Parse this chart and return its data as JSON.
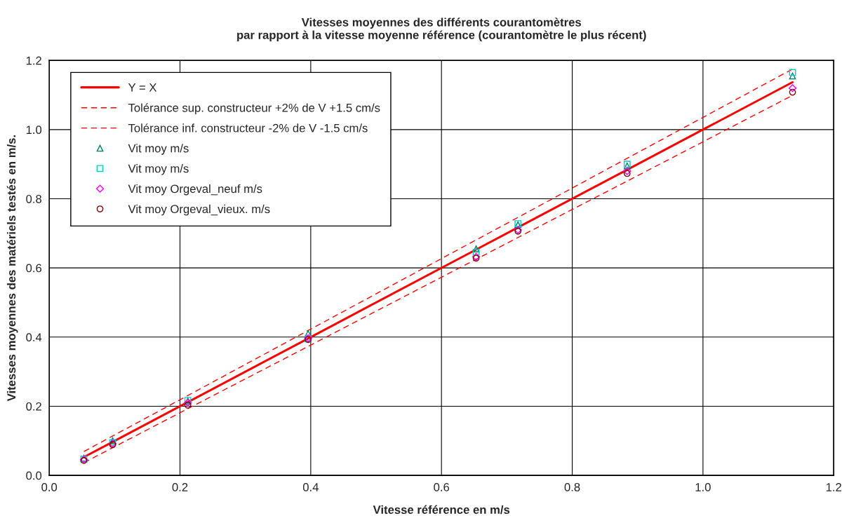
{
  "chart_data": {
    "type": "scatter",
    "title": "Vitesses moyennes des différents courantomètres\npar rapport à la vitesse moyenne référence (courantomètre le plus récent)",
    "xlabel": "Vitesse référence en m/s",
    "ylabel": "Vitesses moyennes des matériels testés en m/s.",
    "x": [
      0.053,
      0.097,
      0.212,
      0.396,
      0.653,
      0.717,
      0.884,
      1.137
    ],
    "series": [
      {
        "name": "Y = X",
        "type": "line",
        "color": "#ff0000",
        "line_style": "solid",
        "marker": "none",
        "values": [
          0.053,
          0.097,
          0.212,
          0.396,
          0.653,
          0.717,
          0.884,
          1.137
        ]
      },
      {
        "name": "Tolérance sup. constructeur +2% de V +1.5 cm/s",
        "type": "line",
        "color": "#ff0000",
        "line_style": "dashed",
        "marker": "none",
        "values": [
          0.069,
          0.114,
          0.231,
          0.419,
          0.681,
          0.746,
          0.917,
          1.175
        ]
      },
      {
        "name": "Tolérance inf. constructeur -2% de V -1.5 cm/s",
        "type": "line",
        "color": "#ff0000",
        "line_style": "dashed",
        "marker": "none",
        "values": [
          0.037,
          0.08,
          0.193,
          0.373,
          0.625,
          0.688,
          0.851,
          1.099
        ]
      },
      {
        "name": "Vit moy m/s",
        "color": "#008060",
        "marker": "triangle",
        "values": [
          0.05,
          0.1,
          0.215,
          0.41,
          0.655,
          0.725,
          0.895,
          1.155
        ]
      },
      {
        "name": "Vit moy m/s",
        "color": "#00cccc",
        "marker": "square",
        "values": [
          0.047,
          0.095,
          0.217,
          0.395,
          0.645,
          0.728,
          0.9,
          1.165
        ]
      },
      {
        "name": "Vit moy Orgeval_neuf m/s",
        "color": "#ff00ff",
        "marker": "diamond",
        "values": [
          0.046,
          0.092,
          0.21,
          0.397,
          0.632,
          0.71,
          0.88,
          1.12
        ]
      },
      {
        "name": "Vit moy Orgeval_vieux. m/s",
        "color": "#800000",
        "marker": "circle",
        "values": [
          0.043,
          0.089,
          0.203,
          0.393,
          0.628,
          0.706,
          0.873,
          1.108
        ]
      }
    ],
    "xlim": [
      0.0,
      1.2
    ],
    "ylim": [
      0.0,
      1.2
    ],
    "xticks": [
      {
        "value": 0.0,
        "label": "0.0"
      },
      {
        "value": 0.2,
        "label": "0.2"
      },
      {
        "value": 0.4,
        "label": "0.4"
      },
      {
        "value": 0.6,
        "label": "0.6"
      },
      {
        "value": 0.8,
        "label": "0.8"
      },
      {
        "value": 1.0,
        "label": "1.0"
      },
      {
        "value": 1.2,
        "label": "1.2"
      }
    ],
    "yticks": [
      {
        "value": 0.0,
        "label": "0.0"
      },
      {
        "value": 0.2,
        "label": "0.2"
      },
      {
        "value": 0.4,
        "label": "0.4"
      },
      {
        "value": 0.6,
        "label": "0.6"
      },
      {
        "value": 0.8,
        "label": "0.8"
      },
      {
        "value": 1.0,
        "label": "1.0"
      },
      {
        "value": 1.2,
        "label": "1.2"
      }
    ],
    "grid": true,
    "legend": "top left"
  }
}
